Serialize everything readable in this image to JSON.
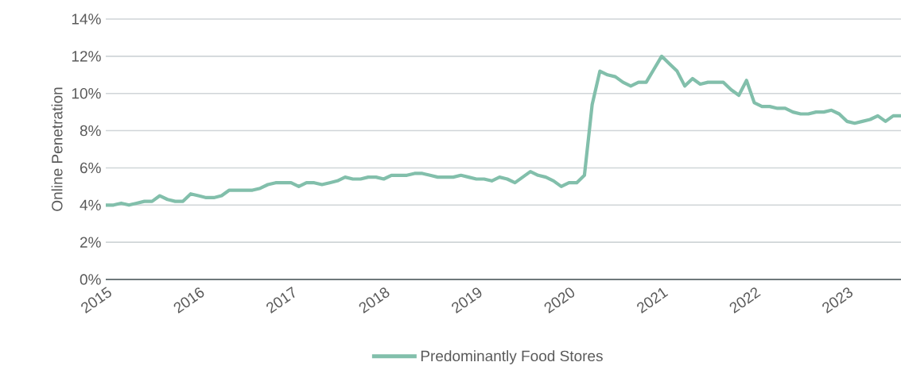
{
  "chart_data": {
    "type": "line",
    "ylabel": "Online Penetration",
    "x": [
      "2015-01",
      "2015-02",
      "2015-03",
      "2015-04",
      "2015-05",
      "2015-06",
      "2015-07",
      "2015-08",
      "2015-09",
      "2015-10",
      "2015-11",
      "2015-12",
      "2016-01",
      "2016-02",
      "2016-03",
      "2016-04",
      "2016-05",
      "2016-06",
      "2016-07",
      "2016-08",
      "2016-09",
      "2016-10",
      "2016-11",
      "2016-12",
      "2017-01",
      "2017-02",
      "2017-03",
      "2017-04",
      "2017-05",
      "2017-06",
      "2017-07",
      "2017-08",
      "2017-09",
      "2017-10",
      "2017-11",
      "2017-12",
      "2018-01",
      "2018-02",
      "2018-03",
      "2018-04",
      "2018-05",
      "2018-06",
      "2018-07",
      "2018-08",
      "2018-09",
      "2018-10",
      "2018-11",
      "2018-12",
      "2019-01",
      "2019-02",
      "2019-03",
      "2019-04",
      "2019-05",
      "2019-06",
      "2019-07",
      "2019-08",
      "2019-09",
      "2019-10",
      "2019-11",
      "2019-12",
      "2020-01",
      "2020-02",
      "2020-03",
      "2020-04",
      "2020-05",
      "2020-06",
      "2020-07",
      "2020-08",
      "2020-09",
      "2020-10",
      "2020-11",
      "2020-12",
      "2021-01",
      "2021-02",
      "2021-03",
      "2021-04",
      "2021-05",
      "2021-06",
      "2021-07",
      "2021-08",
      "2021-09",
      "2021-10",
      "2021-11",
      "2021-12",
      "2022-01",
      "2022-02",
      "2022-03",
      "2022-04",
      "2022-05",
      "2022-06",
      "2022-07",
      "2022-08",
      "2022-09",
      "2022-10",
      "2022-11",
      "2022-12",
      "2023-01",
      "2023-02",
      "2023-03",
      "2023-04",
      "2023-05",
      "2023-06",
      "2023-07",
      "2023-08"
    ],
    "series": [
      {
        "name": "Predominantly Food Stores",
        "color": "#82bfab",
        "values": [
          4.0,
          4.0,
          4.1,
          4.0,
          4.1,
          4.2,
          4.2,
          4.5,
          4.3,
          4.2,
          4.2,
          4.6,
          4.5,
          4.4,
          4.4,
          4.5,
          4.8,
          4.8,
          4.8,
          4.8,
          4.9,
          5.1,
          5.2,
          5.2,
          5.2,
          5.0,
          5.2,
          5.2,
          5.1,
          5.2,
          5.3,
          5.5,
          5.4,
          5.4,
          5.5,
          5.5,
          5.4,
          5.6,
          5.6,
          5.6,
          5.7,
          5.7,
          5.6,
          5.5,
          5.5,
          5.5,
          5.6,
          5.5,
          5.4,
          5.4,
          5.3,
          5.5,
          5.4,
          5.2,
          5.5,
          5.8,
          5.6,
          5.5,
          5.3,
          5.0,
          5.2,
          5.2,
          5.6,
          9.4,
          11.2,
          11.0,
          10.9,
          10.6,
          10.4,
          10.6,
          10.6,
          11.3,
          12.0,
          11.6,
          11.2,
          10.4,
          10.8,
          10.5,
          10.6,
          10.6,
          10.6,
          10.2,
          9.9,
          10.7,
          9.5,
          9.3,
          9.3,
          9.2,
          9.2,
          9.0,
          8.9,
          8.9,
          9.0,
          9.0,
          9.1,
          8.9,
          8.5,
          8.4,
          8.5,
          8.6,
          8.8,
          8.5,
          8.8,
          8.8
        ]
      }
    ],
    "xlim": [
      "2015-01",
      "2023-08"
    ],
    "xticks": [
      "2015",
      "2016",
      "2017",
      "2018",
      "2019",
      "2020",
      "2021",
      "2022",
      "2023"
    ],
    "ylim": [
      0,
      14
    ],
    "yticks": [
      {
        "value": 0,
        "label": "0%"
      },
      {
        "value": 2,
        "label": "2%"
      },
      {
        "value": 4,
        "label": "4%"
      },
      {
        "value": 6,
        "label": "6%"
      },
      {
        "value": 8,
        "label": "8%"
      },
      {
        "value": 10,
        "label": "10%"
      },
      {
        "value": 12,
        "label": "12%"
      },
      {
        "value": 14,
        "label": "14%"
      }
    ],
    "grid": "y",
    "legend": "bottom",
    "marker": "none",
    "line_style": "solid"
  }
}
